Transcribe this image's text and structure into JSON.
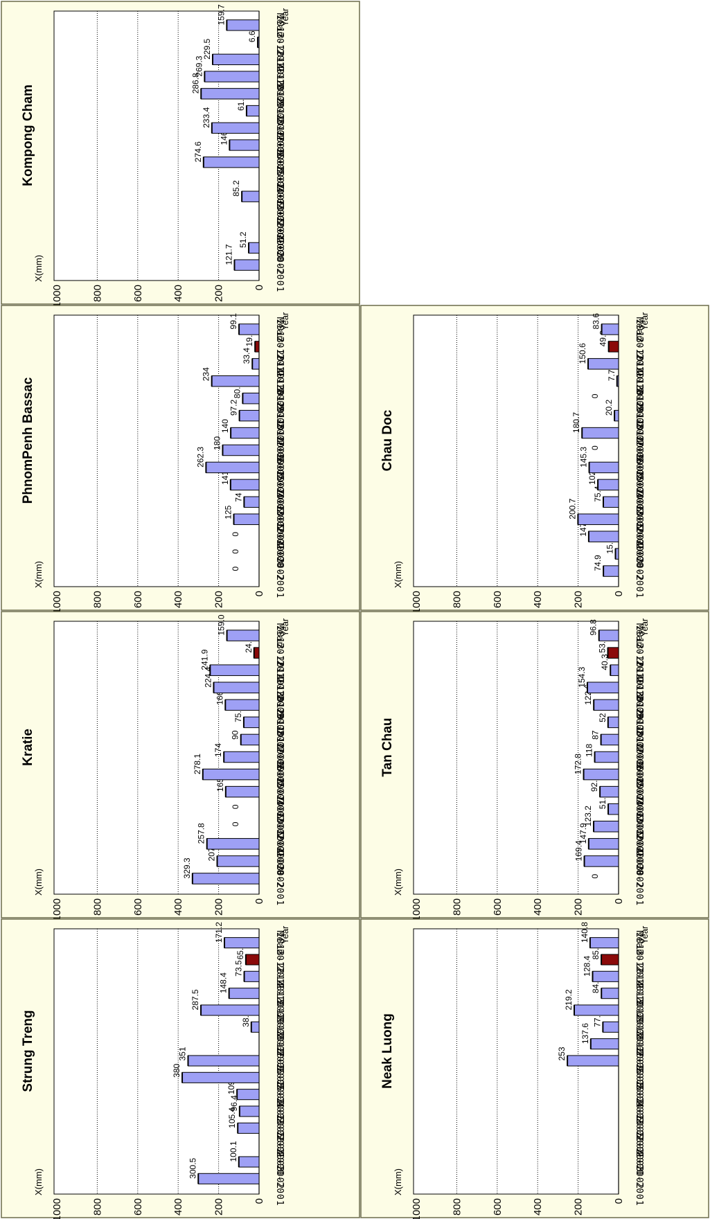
{
  "colors": {
    "bar": "#9ea0f5",
    "highlight": "#8b0a0a",
    "panel": "#fdfde6"
  },
  "chart_data": [
    {
      "type": "bar",
      "title": "Kompong Cham",
      "ylabel": "X(mm)",
      "xlabel": "Year",
      "ylim": [
        0,
        1000
      ],
      "yticks": [
        "1000",
        "800",
        "600",
        "400",
        "200",
        "0"
      ],
      "grid": true,
      "categories": [
        "2000-2001",
        "2001-2002",
        "2002-2003",
        "2003-2004",
        "2004-2005",
        "2005-2006",
        "2006-2007",
        "2007-2008",
        "2008-2009",
        "2009-2010",
        "2010-2011",
        "2011-2012",
        "2012-2013",
        "2013-2014",
        "Mean"
      ],
      "values": [
        121.7,
        51.2,
        null,
        null,
        85.2,
        null,
        274.6,
        146,
        233.4,
        61.9,
        286.8,
        269.3,
        229.5,
        6.6,
        159.7
      ],
      "labels": [
        "121.7",
        "51.2",
        "",
        "",
        "85.2",
        "",
        "274.6",
        "146",
        "233.4",
        "61.9",
        "286.8",
        "269.3",
        "229.5",
        "6.6",
        "159.7"
      ],
      "highlight": []
    },
    {
      "type": "bar",
      "title": "PhnomPenh Bassac",
      "ylabel": "X(mm)",
      "xlabel": "Year",
      "ylim": [
        0,
        1000
      ],
      "yticks": [
        "1000",
        "800",
        "600",
        "400",
        "200",
        "0"
      ],
      "grid": true,
      "categories": [
        "2000-2001",
        "2001-2002",
        "2002-2003",
        "2003-2004",
        "2004-2005",
        "2005-2006",
        "2006-2007",
        "2007-2008",
        "2008-2009",
        "2009-2010",
        "2010-2011",
        "2011-2012",
        "2012-2013",
        "2013-2014",
        "Mean"
      ],
      "values": [
        0,
        0,
        0,
        125,
        74,
        141,
        262.3,
        180,
        140,
        97.2,
        80.9,
        234,
        33.4,
        19.9,
        99.1
      ],
      "labels": [
        "0",
        "0",
        "0",
        "125",
        "74",
        "141",
        "262.3",
        "180",
        "140",
        "97.2",
        "80.9",
        "234",
        "33.4",
        "19.9",
        "99.1"
      ],
      "highlight": [
        13
      ]
    },
    {
      "type": "bar",
      "title": "Kratie",
      "ylabel": "X(mm)",
      "xlabel": "Year",
      "ylim": [
        0,
        1000
      ],
      "yticks": [
        "1000",
        "800",
        "600",
        "400",
        "200",
        "0"
      ],
      "grid": true,
      "categories": [
        "2000-2001",
        "2001-2002",
        "2002-2003",
        "2003-2004",
        "2004-2005",
        "2005-2006",
        "2006-2007",
        "2007-2008",
        "2008-2009",
        "2009-2010",
        "2010-2011",
        "2011-2012",
        "2012-2013",
        "2013-2014",
        "Mean"
      ],
      "values": [
        329.3,
        207.1,
        257.8,
        0,
        0,
        165,
        278.1,
        174,
        90,
        75.6,
        166.8,
        224.4,
        241.9,
        24.8,
        159.0
      ],
      "labels": [
        "329.3",
        "207.1",
        "257.8",
        "0",
        "0",
        "165",
        "278.1",
        "174",
        "90",
        "75.6",
        "166.8",
        "224.4",
        "241.9",
        "24.8",
        "159.0"
      ],
      "highlight": [
        13
      ]
    },
    {
      "type": "bar",
      "title": "Strung Treng",
      "ylabel": "X(mm)",
      "xlabel": "Year",
      "ylim": [
        0,
        1000
      ],
      "yticks": [
        "1000",
        "800",
        "600",
        "400",
        "200",
        "0"
      ],
      "grid": true,
      "categories": [
        "2000-2001",
        "2001-2002",
        "2002-2003",
        "2003-2004",
        "2004-2005",
        "2005-2006",
        "2006-2007",
        "2007-2008",
        "2008-2009",
        "2009-2010",
        "2010-2011",
        "2011-2012",
        "2012-2013",
        "2013-2014",
        "Mean"
      ],
      "values": [
        300.5,
        100.1,
        null,
        105.4,
        96.4,
        109.1,
        380,
        351,
        null,
        38.5,
        287.5,
        148.4,
        73.5,
        65.5,
        171.2
      ],
      "labels": [
        "300.5",
        "100.1",
        "",
        "105.4",
        "96.4",
        "109.1",
        "380",
        "351",
        "",
        "38.5",
        "287.5",
        "148.4",
        "73.5",
        "65.5",
        "171.2"
      ],
      "highlight": [
        13
      ]
    },
    {
      "type": "bar",
      "title": "Chau Doc",
      "ylabel": "X(mm)",
      "xlabel": "Year",
      "ylim": [
        0,
        1000
      ],
      "yticks": [
        "1000",
        "800",
        "600",
        "400",
        "200",
        "0"
      ],
      "grid": true,
      "categories": [
        "2000-2001",
        "2001-2002",
        "2002-2003",
        "2003-2004",
        "2004-2005",
        "2005-2006",
        "2006-2007",
        "2007-2008",
        "2008-2009",
        "2009-2010",
        "2010-2011",
        "2011-2012",
        "2012-2013",
        "2013-2014",
        "Mean"
      ],
      "values": [
        74.9,
        15.4,
        147.6,
        200.7,
        75.4,
        102.4,
        145.3,
        0,
        180.7,
        20.2,
        0,
        7.7,
        150.6,
        49.2,
        83.6
      ],
      "labels": [
        "74.9",
        "15.4",
        "147.6",
        "200.7",
        "75.4",
        "102.4",
        "145.3",
        "0",
        "180.7",
        "20.2",
        "0",
        "7.7",
        "150.6",
        "49.2",
        "83.6"
      ],
      "highlight": [
        13
      ]
    },
    {
      "type": "bar",
      "title": "Tan Chau",
      "ylabel": "X(mm)",
      "xlabel": "Year",
      "ylim": [
        0,
        1000
      ],
      "yticks": [
        "1000",
        "800",
        "600",
        "400",
        "200",
        "0"
      ],
      "grid": true,
      "categories": [
        "2000-2001",
        "2001-2002",
        "2002-2003",
        "2003-2004",
        "2004-2005",
        "2005-2006",
        "2006-2007",
        "2007-2008",
        "2008-2009",
        "2009-2010",
        "2010-2011",
        "2011-2012",
        "2012-2013",
        "2013-2014",
        "Mean"
      ],
      "values": [
        0,
        169.4,
        147.9,
        123.2,
        51.2,
        92.1,
        172.8,
        118,
        87,
        52,
        122.6,
        154.3,
        40.3,
        53.1,
        96.8
      ],
      "labels": [
        "0",
        "169.4",
        "147.9",
        "123.2",
        "51.2",
        "92.1",
        "172.8",
        "118",
        "87",
        "52",
        "122.6",
        "154.3",
        "40.3",
        "53.1",
        "96.8"
      ],
      "highlight": [
        13
      ]
    },
    {
      "type": "bar",
      "title": "Neak Luong",
      "ylabel": "X(mm)",
      "xlabel": "Year",
      "ylim": [
        0,
        1000
      ],
      "yticks": [
        "1000",
        "800",
        "600",
        "400",
        "200",
        "0"
      ],
      "grid": true,
      "categories": [
        "2000-2001",
        "2001-2002",
        "2002-2003",
        "2003-2004",
        "2004-2005",
        "2005-2006",
        "2006-2007",
        "2007-2008",
        "2008-2009",
        "2009-2010",
        "2010-2011",
        "2011-2012",
        "2012-2013",
        "2013-2014",
        "Mean"
      ],
      "values": [
        null,
        null,
        null,
        null,
        null,
        null,
        null,
        253,
        137.6,
        77.5,
        219.2,
        84.8,
        128.4,
        85.4,
        140.8
      ],
      "labels": [
        "",
        "",
        "",
        "",
        "",
        "",
        "",
        "253",
        "137.6",
        "77.5",
        "219.2",
        "84.8",
        "128.4",
        "85.4",
        "140.8"
      ],
      "highlight": [
        13
      ]
    }
  ]
}
